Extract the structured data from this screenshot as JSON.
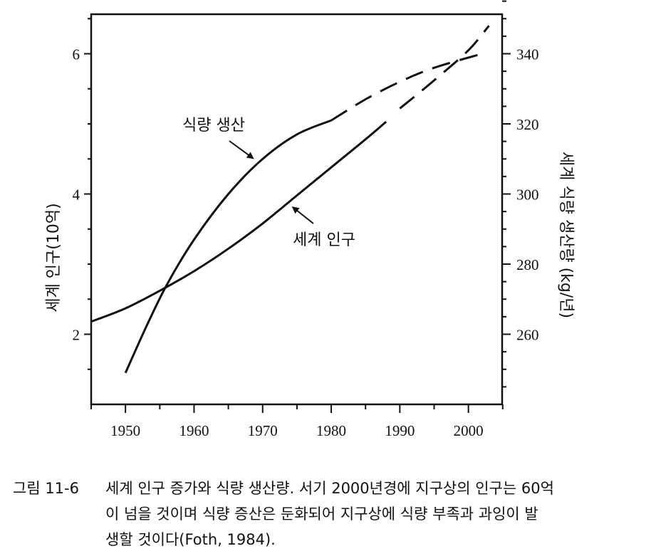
{
  "chart_data": {
    "type": "line",
    "x_ticks": [
      1950,
      1960,
      1970,
      1980,
      1990,
      2000
    ],
    "xlim": [
      1945,
      2005
    ],
    "left_axis": {
      "label": "세계 인구(10억)",
      "range": [
        1.0,
        7.0
      ],
      "ticks": [
        2,
        4,
        6
      ],
      "tick_labels": [
        "2",
        "4",
        "6"
      ]
    },
    "right_axis": {
      "label": "세계 식량 생산량 (kg/년)",
      "range": [
        240,
        360
      ],
      "ticks": [
        260,
        280,
        300,
        320,
        340
      ],
      "tick_labels": [
        "260",
        "280",
        "300",
        "320",
        "340"
      ]
    },
    "series": [
      {
        "name": "세계 인구",
        "axis": "left",
        "solid": [
          [
            1945,
            2.18
          ],
          [
            1950,
            2.37
          ],
          [
            1955,
            2.62
          ],
          [
            1960,
            2.9
          ],
          [
            1965,
            3.22
          ],
          [
            1970,
            3.58
          ],
          [
            1975,
            3.98
          ],
          [
            1980,
            4.38
          ],
          [
            1985,
            4.78
          ],
          [
            1988,
            5.03
          ]
        ],
        "dashed": [
          [
            1990,
            5.22
          ],
          [
            1995,
            5.62
          ],
          [
            2000,
            6.05
          ],
          [
            2003,
            6.4
          ]
        ]
      },
      {
        "name": "식량 생산",
        "axis": "right",
        "solid": [
          [
            1950,
            249
          ],
          [
            1953,
            262
          ],
          [
            1956,
            274
          ],
          [
            1960,
            287
          ],
          [
            1965,
            300
          ],
          [
            1970,
            310
          ],
          [
            1975,
            317
          ],
          [
            1980,
            321
          ]
        ],
        "dashed": [
          [
            1980,
            321
          ],
          [
            1985,
            327
          ],
          [
            1990,
            332
          ],
          [
            1995,
            336
          ],
          [
            2002,
            340
          ]
        ]
      }
    ],
    "annotations": [
      {
        "text": "식량 생산",
        "target": [
          1969,
          309
        ],
        "axis": "right"
      },
      {
        "text": "세계 인구",
        "target": [
          1974,
          3.85
        ],
        "axis": "left"
      }
    ]
  },
  "caption": {
    "figure_label": "그림 11-6",
    "line1": "세계 인구 증가와 식량 생산량. 서기 2000년경에 지구상의 인구는 60억",
    "line2": "이 넘을 것이며 식량 증산은 둔화되어 지구상에 식량 부족과 과잉이 발",
    "line3": "생할 것이다(Foth, 1984)."
  }
}
